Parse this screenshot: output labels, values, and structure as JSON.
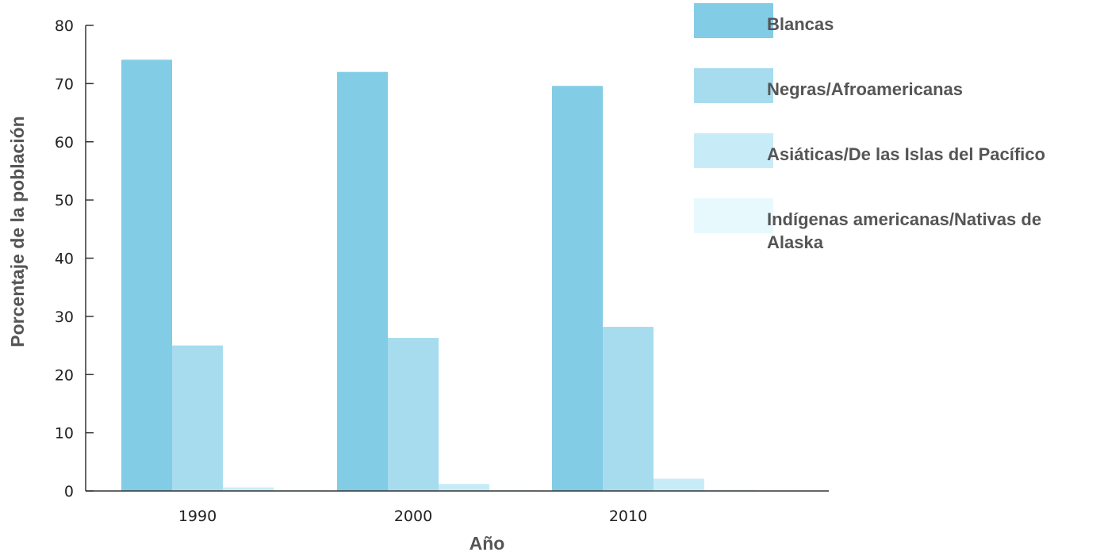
{
  "chart_data": {
    "type": "bar",
    "title": "",
    "xlabel": "Año",
    "ylabel": "Porcentaje de la población",
    "categories": [
      "1990",
      "2000",
      "2010"
    ],
    "ylim": [
      0,
      80
    ],
    "yticks": [
      "0",
      "10",
      "20",
      "30",
      "40",
      "50",
      "60",
      "70",
      "80"
    ],
    "grid": false,
    "legend_position": "top-right",
    "series": [
      {
        "name": "Blancas",
        "values": [
          74.1,
          72.0,
          69.6
        ],
        "color": "#82cce6"
      },
      {
        "name": "Negras/Afroamericanas",
        "values": [
          25.0,
          26.3,
          28.2
        ],
        "color": "#a7dcef"
      },
      {
        "name": "Asiáticas/De las Islas del Pacífico",
        "values": [
          0.6,
          1.2,
          2.1
        ],
        "color": "#c8ecf7"
      },
      {
        "name": "Indígenas americanas/Nativas de Alaska",
        "values": [
          0.2,
          0.2,
          0.3
        ],
        "color": "#e8f9fd"
      }
    ],
    "legend_label_lines": [
      [
        "Blancas"
      ],
      [
        "Negras/Afroamericanas"
      ],
      [
        "Asiáticas/De las Islas del Pacífico"
      ],
      [
        "Indígenas americanas/Nativas de",
        "Alaska"
      ]
    ]
  }
}
